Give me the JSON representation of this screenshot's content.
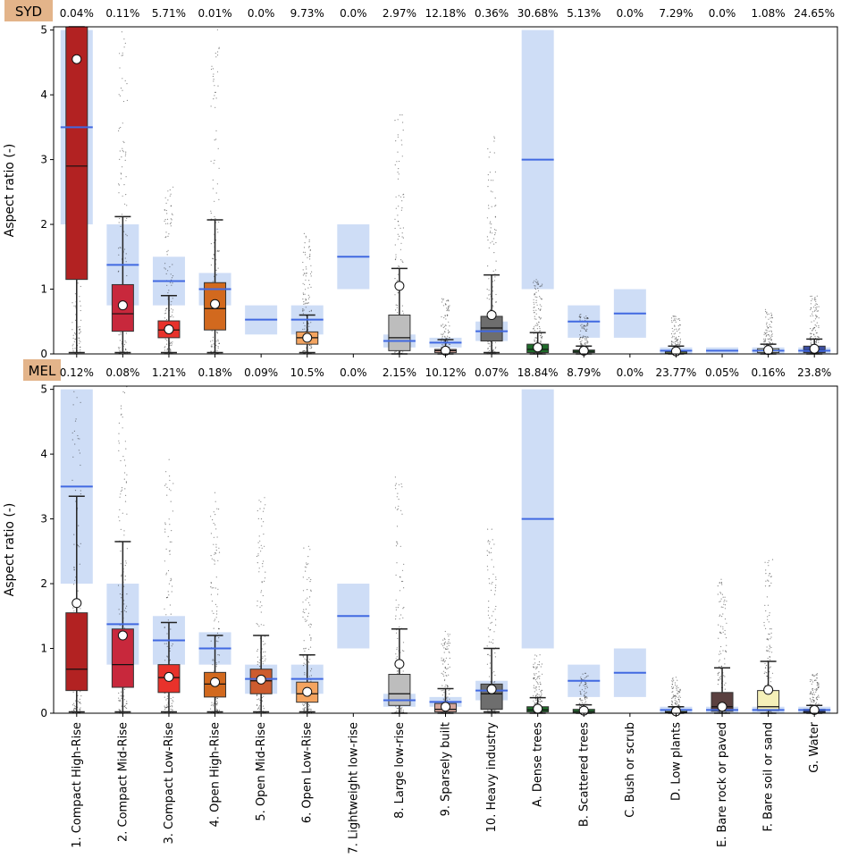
{
  "chart_data": {
    "type": "box",
    "categories": [
      "1. Compact High-Rise",
      "2. Compact Mid-Rise",
      "3. Compact Low-Rise",
      "4. Open High-Rise",
      "5. Open Mid-Rise",
      "6. Open Low-Rise",
      "7. Lightweight low-rise",
      "8. Large low-rise",
      "9. Sparsely built",
      "10. Heavy industry",
      "A. Dense trees",
      "B. Scattered trees",
      "C. Bush or scrub",
      "D. Low plants",
      "E. Bare rock or paved",
      "F. Bare soil or sand",
      "G. Water"
    ],
    "colors": [
      "#b22222",
      "#c8283c",
      "#e8322b",
      "#d2691e",
      "#cd5c2e",
      "#f4a460",
      "#cccccc",
      "#bdbdbd",
      "#d4a59a",
      "#6e6e6e",
      "#1f6b2a",
      "#2e8b3d",
      "#6b8e23",
      "#b8d67a",
      "#5a4040",
      "#f5f0b8",
      "#3b4da0"
    ],
    "reference_color": "#4169e1",
    "reference_fill": "#c6d7f5",
    "mean_marker": "white circle",
    "panels": [
      {
        "label": "SYD",
        "ylabel": "Aspect ratio (-)",
        "ylim": [
          0,
          5.05
        ],
        "yticks": [
          "0",
          "1",
          "2",
          "3",
          "4",
          "5"
        ],
        "percentages": [
          "0.04%",
          "0.11%",
          "5.71%",
          "0.01%",
          "0.0%",
          "9.73%",
          "0.0%",
          "2.97%",
          "12.18%",
          "0.36%",
          "30.68%",
          "5.13%",
          "0.0%",
          "7.29%",
          "0.0%",
          "1.08%",
          "24.65%"
        ],
        "reference_ranges": [
          [
            2,
            5
          ],
          [
            0.75,
            2
          ],
          [
            0.75,
            1.5
          ],
          [
            0.75,
            1.25
          ],
          [
            0.3,
            0.75
          ],
          [
            0.3,
            0.75
          ],
          [
            1,
            2
          ],
          [
            0.1,
            0.3
          ],
          [
            0.1,
            0.25
          ],
          [
            0.2,
            0.5
          ],
          [
            1,
            5
          ],
          [
            0.25,
            0.75
          ],
          [
            0.25,
            1
          ],
          [
            0,
            0.1
          ],
          [
            0,
            0.1
          ],
          [
            0,
            0.1
          ],
          [
            0,
            0.1
          ]
        ],
        "reference_median": [
          3.5,
          1.375,
          1.125,
          1.0,
          0.53,
          0.53,
          1.5,
          0.2,
          0.175,
          0.35,
          3.0,
          0.5,
          0.625,
          0.05,
          0.05,
          0.05,
          0.05
        ],
        "boxes": [
          {
            "whisker_low": 0.02,
            "q1": 1.15,
            "median": 2.9,
            "q3": 5.05,
            "whisker_high": 5.05,
            "mean": 4.55
          },
          {
            "whisker_low": 0.02,
            "q1": 0.35,
            "median": 0.62,
            "q3": 1.07,
            "whisker_high": 2.12,
            "mean": 0.75
          },
          {
            "whisker_low": 0.02,
            "q1": 0.25,
            "median": 0.37,
            "q3": 0.51,
            "whisker_high": 0.9,
            "mean": 0.38
          },
          {
            "whisker_low": 0.02,
            "q1": 0.37,
            "median": 0.7,
            "q3": 1.1,
            "whisker_high": 2.07,
            "mean": 0.77
          },
          null,
          {
            "whisker_low": 0.02,
            "q1": 0.15,
            "median": 0.25,
            "q3": 0.34,
            "whisker_high": 0.6,
            "mean": 0.25
          },
          null,
          {
            "whisker_low": 0.0,
            "q1": 0.05,
            "median": 0.25,
            "q3": 0.6,
            "whisker_high": 1.32,
            "mean": 1.05
          },
          {
            "whisker_low": 0.0,
            "q1": 0.02,
            "median": 0.05,
            "q3": 0.07,
            "whisker_high": 0.22,
            "mean": 0.05
          },
          {
            "whisker_low": 0.02,
            "q1": 0.2,
            "median": 0.4,
            "q3": 0.58,
            "whisker_high": 1.22,
            "mean": 0.6
          },
          {
            "whisker_low": 0.0,
            "q1": 0.02,
            "median": 0.07,
            "q3": 0.15,
            "whisker_high": 0.33,
            "mean": 0.1
          },
          {
            "whisker_low": 0.0,
            "q1": 0.02,
            "median": 0.04,
            "q3": 0.06,
            "whisker_high": 0.12,
            "mean": 0.05
          },
          null,
          {
            "whisker_low": 0.0,
            "q1": 0.01,
            "median": 0.03,
            "q3": 0.05,
            "whisker_high": 0.12,
            "mean": 0.04
          },
          null,
          {
            "whisker_low": 0.0,
            "q1": 0.02,
            "median": 0.05,
            "q3": 0.08,
            "whisker_high": 0.15,
            "mean": 0.06
          },
          {
            "whisker_low": 0.0,
            "q1": 0.02,
            "median": 0.06,
            "q3": 0.12,
            "whisker_high": 0.23,
            "mean": 0.08
          }
        ]
      },
      {
        "label": "MEL",
        "ylabel": "Aspect ratio (-)",
        "ylim": [
          0,
          5.05
        ],
        "yticks": [
          "0",
          "1",
          "2",
          "3",
          "4",
          "5"
        ],
        "percentages": [
          "0.12%",
          "0.08%",
          "1.21%",
          "0.18%",
          "0.09%",
          "10.5%",
          "0.0%",
          "2.15%",
          "10.12%",
          "0.07%",
          "18.84%",
          "8.79%",
          "0.0%",
          "23.77%",
          "0.05%",
          "0.16%",
          "23.8%"
        ],
        "reference_ranges": [
          [
            2,
            5
          ],
          [
            0.75,
            2
          ],
          [
            0.75,
            1.5
          ],
          [
            0.75,
            1.25
          ],
          [
            0.3,
            0.75
          ],
          [
            0.3,
            0.75
          ],
          [
            1,
            2
          ],
          [
            0.1,
            0.3
          ],
          [
            0.1,
            0.25
          ],
          [
            0.2,
            0.5
          ],
          [
            1,
            5
          ],
          [
            0.25,
            0.75
          ],
          [
            0.25,
            1
          ],
          [
            0,
            0.1
          ],
          [
            0,
            0.1
          ],
          [
            0,
            0.1
          ],
          [
            0,
            0.1
          ]
        ],
        "reference_median": [
          3.5,
          1.375,
          1.125,
          1.0,
          0.53,
          0.53,
          1.5,
          0.2,
          0.175,
          0.35,
          3.0,
          0.5,
          0.625,
          0.05,
          0.05,
          0.05,
          0.05
        ],
        "boxes": [
          {
            "whisker_low": 0.02,
            "q1": 0.35,
            "median": 0.68,
            "q3": 1.55,
            "whisker_high": 3.35,
            "mean": 1.7
          },
          {
            "whisker_low": 0.02,
            "q1": 0.4,
            "median": 0.75,
            "q3": 1.3,
            "whisker_high": 2.65,
            "mean": 1.2
          },
          {
            "whisker_low": 0.02,
            "q1": 0.32,
            "median": 0.55,
            "q3": 0.75,
            "whisker_high": 1.4,
            "mean": 0.56
          },
          {
            "whisker_low": 0.02,
            "q1": 0.25,
            "median": 0.45,
            "q3": 0.63,
            "whisker_high": 1.2,
            "mean": 0.48
          },
          {
            "whisker_low": 0.02,
            "q1": 0.3,
            "median": 0.5,
            "q3": 0.68,
            "whisker_high": 1.2,
            "mean": 0.52
          },
          {
            "whisker_low": 0.02,
            "q1": 0.17,
            "median": 0.3,
            "q3": 0.48,
            "whisker_high": 0.9,
            "mean": 0.33
          },
          null,
          {
            "whisker_low": 0.0,
            "q1": 0.12,
            "median": 0.3,
            "q3": 0.6,
            "whisker_high": 1.3,
            "mean": 0.76
          },
          {
            "whisker_low": 0.0,
            "q1": 0.02,
            "median": 0.06,
            "q3": 0.15,
            "whisker_high": 0.38,
            "mean": 0.1
          },
          {
            "whisker_low": 0.02,
            "q1": 0.06,
            "median": 0.3,
            "q3": 0.45,
            "whisker_high": 1.0,
            "mean": 0.37
          },
          {
            "whisker_low": 0.0,
            "q1": 0.02,
            "median": 0.05,
            "q3": 0.1,
            "whisker_high": 0.24,
            "mean": 0.07
          },
          {
            "whisker_low": 0.0,
            "q1": 0.01,
            "median": 0.03,
            "q3": 0.06,
            "whisker_high": 0.13,
            "mean": 0.04
          },
          null,
          {
            "whisker_low": 0.0,
            "q1": 0.01,
            "median": 0.02,
            "q3": 0.04,
            "whisker_high": 0.1,
            "mean": 0.03
          },
          {
            "whisker_low": 0.0,
            "q1": 0.03,
            "median": 0.1,
            "q3": 0.32,
            "whisker_high": 0.7,
            "mean": 0.1
          },
          {
            "whisker_low": 0.0,
            "q1": 0.04,
            "median": 0.1,
            "q3": 0.35,
            "whisker_high": 0.8,
            "mean": 0.36
          },
          {
            "whisker_low": 0.0,
            "q1": 0.01,
            "median": 0.03,
            "q3": 0.06,
            "whisker_high": 0.12,
            "mean": 0.05
          }
        ]
      }
    ]
  }
}
